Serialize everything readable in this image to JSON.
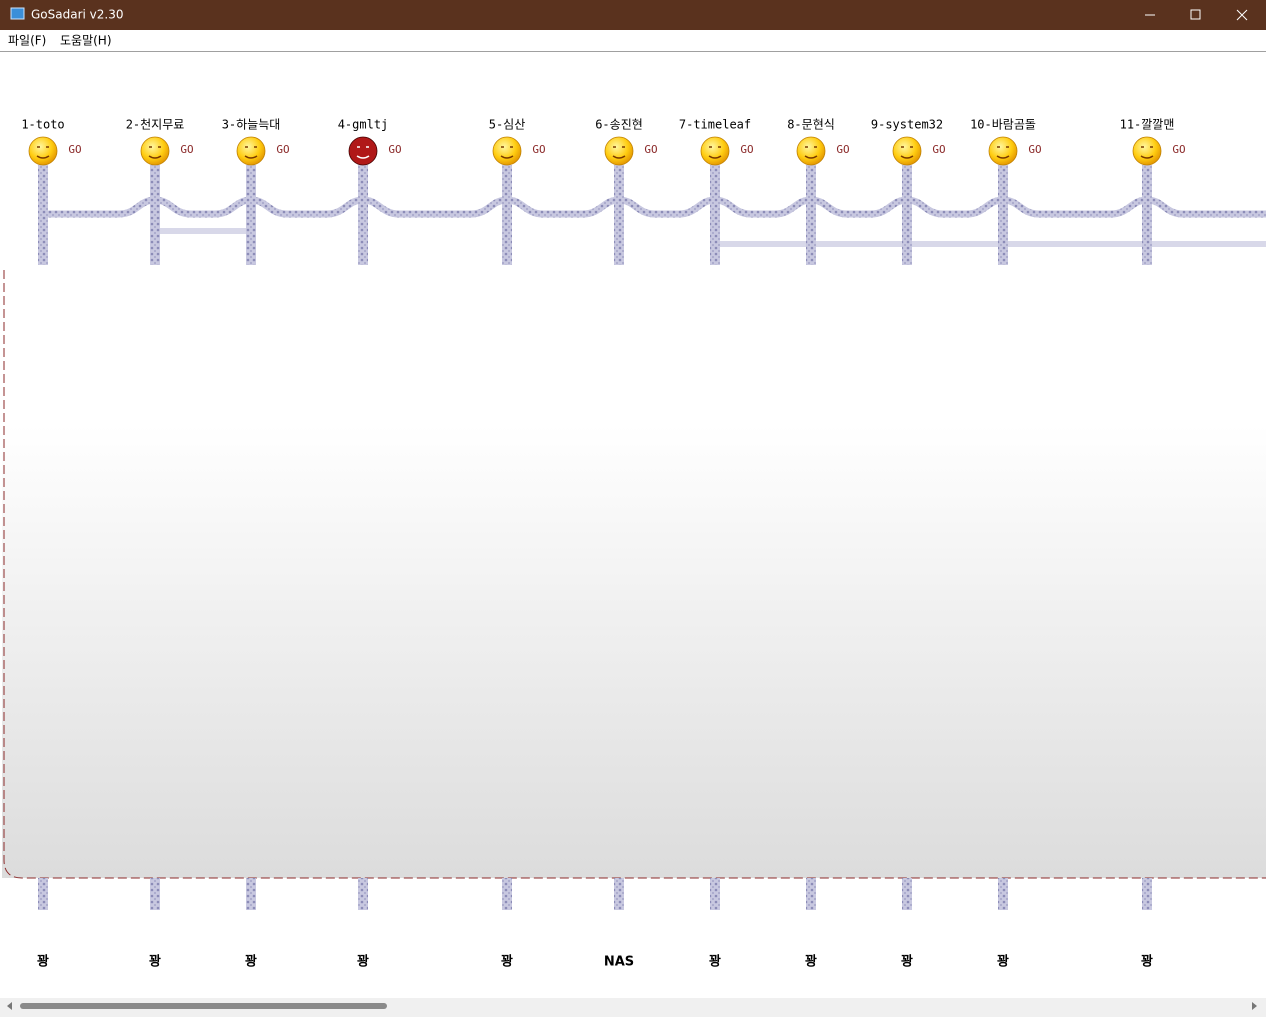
{
  "window": {
    "title": "GoSadari v2.30"
  },
  "menu": [
    "파일(F)",
    "도움말(H)"
  ],
  "go_label": "GO",
  "players": [
    {
      "name": "1-toto",
      "result": "꽝"
    },
    {
      "name": "2-천지무료",
      "result": "꽝"
    },
    {
      "name": "3-하늘늑대",
      "result": "꽝"
    },
    {
      "name": "4-gmltj",
      "result": "꽝"
    },
    {
      "name": "5-심산",
      "result": "꽝"
    },
    {
      "name": "6-송진현",
      "result": "NAS"
    },
    {
      "name": "7-timeleaf",
      "result": "꽝"
    },
    {
      "name": "8-문현식",
      "result": "꽝"
    },
    {
      "name": "9-system32",
      "result": "꽝"
    },
    {
      "name": "10-바람곰돌",
      "result": "꽝"
    },
    {
      "name": "11-깔깔맨",
      "result": "꽝"
    }
  ]
}
